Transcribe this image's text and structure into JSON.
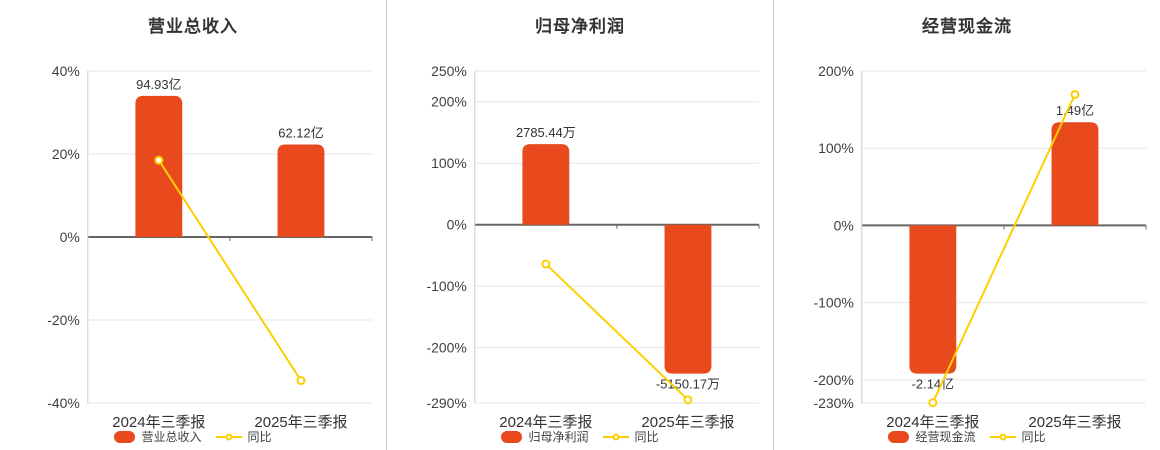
{
  "colors": {
    "bar": "#e8491d",
    "line": "#fcd000",
    "grid": "#e0e6f1",
    "zero_axis": "#666666",
    "axis_line": "#cccccc",
    "divider": "#c9c9c9",
    "title_text": "#333333",
    "label_text": "#404040",
    "value_text": "#333333",
    "background": "#ffffff"
  },
  "chart_data": [
    {
      "type": "bar+line",
      "title": "营业总收入",
      "categories": [
        "2024年三季报",
        "2025年三季报"
      ],
      "unit": "亿",
      "series": [
        {
          "name": "营业总收入",
          "type": "bar",
          "values": [
            94.93,
            62.12
          ],
          "labels": [
            "94.93亿",
            "62.12亿"
          ],
          "display_pct": [
            34,
            22.3
          ]
        },
        {
          "name": "同比",
          "type": "line",
          "values_pct": [
            18.5,
            -34.6
          ]
        }
      ],
      "y_ticks": [
        {
          "label": "40%",
          "value": 40
        },
        {
          "label": "20%",
          "value": 20
        },
        {
          "label": "0%",
          "value": 0
        },
        {
          "label": "-20%",
          "value": -20
        },
        {
          "label": "-40%",
          "value": -40
        }
      ],
      "ylim": [
        -40,
        40
      ],
      "legend_position": "bottom",
      "grid": true
    },
    {
      "type": "bar+line",
      "title": "归母净利润",
      "categories": [
        "2024年三季报",
        "2025年三季报"
      ],
      "unit": "万",
      "series": [
        {
          "name": "归母净利润",
          "type": "bar",
          "values": [
            2785.44,
            -5150.17
          ],
          "labels": [
            "2785.44万",
            "-5150.17万"
          ],
          "display_pct": [
            131,
            -242.2
          ]
        },
        {
          "name": "同比",
          "type": "line",
          "values_pct": [
            -64,
            -284.9
          ]
        }
      ],
      "y_ticks": [
        {
          "label": "250%",
          "value": 250
        },
        {
          "label": "200%",
          "value": 200
        },
        {
          "label": "100%",
          "value": 100
        },
        {
          "label": "0%",
          "value": 0
        },
        {
          "label": "-100%",
          "value": -100
        },
        {
          "label": "-200%",
          "value": -200
        },
        {
          "label": "-290%",
          "value": -290
        }
      ],
      "ylim": [
        -290,
        250
      ],
      "legend_position": "bottom",
      "grid": true
    },
    {
      "type": "bar+line",
      "title": "经营现金流",
      "categories": [
        "2024年三季报",
        "2025年三季报"
      ],
      "unit": "亿",
      "series": [
        {
          "name": "经营现金流",
          "type": "bar",
          "values": [
            -2.14,
            1.49
          ],
          "labels": [
            "-2.14亿",
            "1.49亿"
          ],
          "display_pct": [
            -192,
            133.7
          ]
        },
        {
          "name": "同比",
          "type": "line",
          "values_pct": [
            -229.6,
            169.6
          ]
        }
      ],
      "y_ticks": [
        {
          "label": "200%",
          "value": 200
        },
        {
          "label": "100%",
          "value": 100
        },
        {
          "label": "0%",
          "value": 0
        },
        {
          "label": "-100%",
          "value": -100
        },
        {
          "label": "-200%",
          "value": -200
        },
        {
          "label": "-230%",
          "value": -230
        }
      ],
      "ylim": [
        -230,
        200
      ],
      "legend_position": "bottom",
      "grid": true
    }
  ]
}
